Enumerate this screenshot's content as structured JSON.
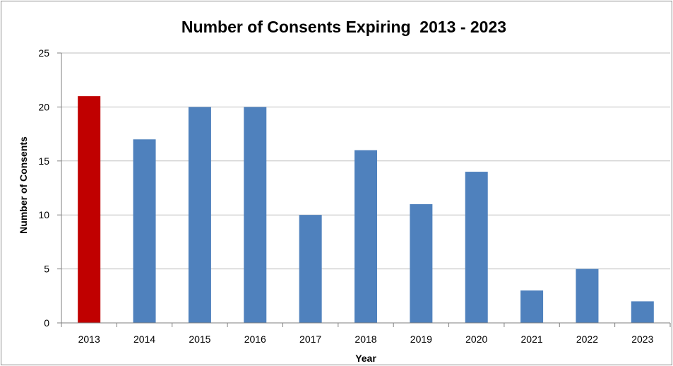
{
  "chart_data": {
    "type": "bar",
    "title": "Number of Consents Expiring  2013 - 2023",
    "xlabel": "Year",
    "ylabel": "Number of Consents",
    "categories": [
      "2013",
      "2014",
      "2015",
      "2016",
      "2017",
      "2018",
      "2019",
      "2020",
      "2021",
      "2022",
      "2023"
    ],
    "values": [
      21,
      17,
      20,
      20,
      10,
      16,
      11,
      14,
      3,
      5,
      2
    ],
    "ylim": [
      0,
      25
    ],
    "yticks": [
      0,
      5,
      10,
      15,
      20,
      25
    ],
    "grid": true,
    "legend": "none",
    "colors": {
      "default_bar": "#4f81bd",
      "highlight_bar": "#c00000",
      "gridline": "#bfbfbf",
      "axis": "#7f7f7f"
    },
    "highlight_index": 0
  }
}
